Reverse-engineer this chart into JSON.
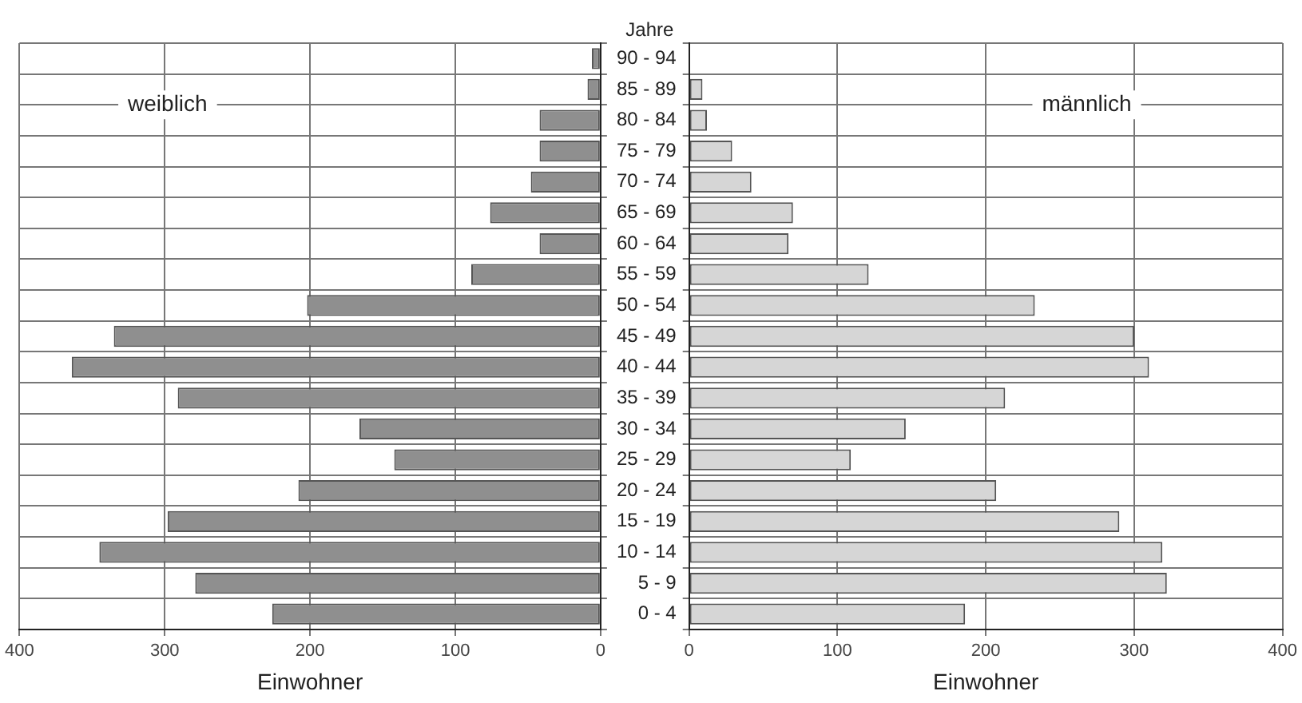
{
  "chart_data": [
    {
      "type": "bar",
      "orientation": "horizontal",
      "xlabel": "Einwohner",
      "annotations": [
        "weiblich"
      ],
      "categories": [
        null,
        null,
        null,
        null,
        null,
        null,
        null,
        null,
        null,
        null,
        null,
        null,
        null,
        null,
        null,
        null,
        null,
        null,
        null
      ],
      "values": [
        6,
        9,
        42,
        42,
        48,
        76,
        42,
        89,
        202,
        335,
        364,
        291,
        166,
        142,
        208,
        298,
        345,
        279,
        226
      ],
      "color": "#8f8f8f",
      "xlim": [
        400,
        0
      ],
      "xticks": [
        400,
        300,
        200,
        100,
        0
      ],
      "grid": true
    },
    {
      "type": "bar",
      "orientation": "horizontal",
      "xlabel": "Einwohner",
      "ylabel": "Jahre",
      "annotations": [
        "männlich"
      ],
      "categories": [
        "90 - 94",
        "85 - 89",
        "80 - 84",
        "75 - 79",
        "70 - 74",
        "65 - 69",
        "60 - 64",
        "55 - 59",
        "50 - 54",
        "45 - 49",
        "40 - 44",
        "35 - 39",
        "30 - 34",
        "25 - 29",
        "20 - 24",
        "15 - 19",
        "10 - 14",
        "5 - 9",
        "0 - 4"
      ],
      "values": [
        0,
        9,
        12,
        29,
        42,
        70,
        67,
        121,
        233,
        300,
        310,
        213,
        146,
        109,
        207,
        290,
        319,
        322,
        186
      ],
      "color": "#d6d6d6",
      "xlim": [
        0,
        400
      ],
      "xticks": [
        0,
        100,
        200,
        300,
        400
      ],
      "grid": true
    }
  ]
}
